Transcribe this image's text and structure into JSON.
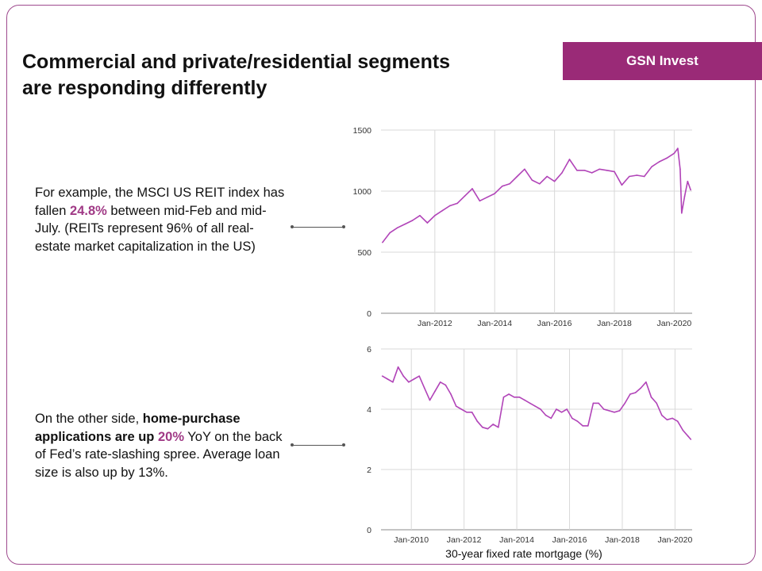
{
  "brand": {
    "label": "GSN Invest",
    "color": "#9a2a77"
  },
  "title": {
    "line1": "Commercial and private/residential segments",
    "line2": "are responding differently"
  },
  "notes": [
    {
      "before": "For example, the MSCI US REIT index has fallen ",
      "highlight": "24.8%",
      "after": " between mid-Feb and mid-July. (REITs represent 96% of all real-estate market capitalization in the US)"
    },
    {
      "before": "On the other side, ",
      "bold": "home-purchase applications are up ",
      "highlight": "20%",
      "after": " YoY on the back of Fed’s rate-slashing spree. Average loan size is also up by 13%."
    }
  ],
  "colors": {
    "series": "#b144b8",
    "accent_text": "#a03a86",
    "frame": "#9e4a8e",
    "grid": "#d9d9d9"
  },
  "chart_data": [
    {
      "type": "line",
      "title": "",
      "series": [
        {
          "x": [
            2010.25,
            2010.5,
            2010.75,
            2011.0,
            2011.25,
            2011.5,
            2011.75,
            2012.0,
            2012.25,
            2012.5,
            2012.75,
            2013.0,
            2013.25,
            2013.5,
            2013.75,
            2014.0,
            2014.25,
            2014.5,
            2014.75,
            2015.0,
            2015.25,
            2015.5,
            2015.75,
            2016.0,
            2016.25,
            2016.5,
            2016.75,
            2017.0,
            2017.25,
            2017.5,
            2017.75,
            2018.0,
            2018.25,
            2018.5,
            2018.75,
            2019.0,
            2019.25,
            2019.5,
            2019.75,
            2020.0,
            2020.12,
            2020.2,
            2020.25,
            2020.35,
            2020.45,
            2020.55
          ],
          "y": [
            580,
            660,
            700,
            730,
            760,
            800,
            740,
            800,
            840,
            880,
            900,
            960,
            1020,
            920,
            950,
            980,
            1040,
            1060,
            1120,
            1180,
            1090,
            1060,
            1120,
            1080,
            1150,
            1260,
            1170,
            1170,
            1150,
            1180,
            1170,
            1160,
            1050,
            1120,
            1130,
            1120,
            1200,
            1240,
            1270,
            1310,
            1350,
            1180,
            820,
            960,
            1080,
            1010
          ]
        }
      ],
      "x_ticks": [
        "Jan-2012",
        "Jan-2014",
        "Jan-2016",
        "Jan-2018",
        "Jan-2020"
      ],
      "x_tick_values": [
        2012,
        2014,
        2016,
        2018,
        2020
      ],
      "xlim": [
        2010.2,
        2020.6
      ],
      "y_ticks": [
        "0",
        "500",
        "1000",
        "1500"
      ],
      "y_tick_values": [
        0,
        500,
        1000,
        1500
      ],
      "ylim": [
        0,
        1500
      ],
      "grid": true
    },
    {
      "type": "line",
      "title": "30-year fixed rate mortgage (%)",
      "series": [
        {
          "x": [
            2008.9,
            2009.1,
            2009.3,
            2009.5,
            2009.7,
            2009.9,
            2010.1,
            2010.3,
            2010.5,
            2010.7,
            2010.9,
            2011.1,
            2011.3,
            2011.5,
            2011.7,
            2011.9,
            2012.1,
            2012.3,
            2012.5,
            2012.7,
            2012.9,
            2013.1,
            2013.3,
            2013.5,
            2013.7,
            2013.9,
            2014.1,
            2014.3,
            2014.5,
            2014.7,
            2014.9,
            2015.1,
            2015.3,
            2015.5,
            2015.7,
            2015.9,
            2016.1,
            2016.3,
            2016.5,
            2016.7,
            2016.9,
            2017.1,
            2017.3,
            2017.5,
            2017.7,
            2017.9,
            2018.1,
            2018.3,
            2018.5,
            2018.7,
            2018.9,
            2019.1,
            2019.3,
            2019.5,
            2019.7,
            2019.9,
            2020.1,
            2020.3,
            2020.5,
            2020.6
          ],
          "y": [
            5.1,
            5.0,
            4.9,
            5.4,
            5.1,
            4.9,
            5.0,
            5.1,
            4.7,
            4.3,
            4.6,
            4.9,
            4.8,
            4.5,
            4.1,
            4.0,
            3.9,
            3.9,
            3.6,
            3.4,
            3.35,
            3.5,
            3.4,
            4.4,
            4.5,
            4.4,
            4.4,
            4.3,
            4.2,
            4.1,
            4.0,
            3.8,
            3.7,
            4.0,
            3.9,
            4.0,
            3.7,
            3.6,
            3.45,
            3.45,
            4.2,
            4.2,
            4.0,
            3.95,
            3.9,
            3.95,
            4.2,
            4.5,
            4.55,
            4.7,
            4.9,
            4.4,
            4.2,
            3.8,
            3.65,
            3.7,
            3.6,
            3.3,
            3.1,
            3.0
          ]
        }
      ],
      "x_ticks": [
        "Jan-2010",
        "Jan-2012",
        "Jan-2014",
        "Jan-2016",
        "Jan-2018",
        "Jan-2020"
      ],
      "x_tick_values": [
        2010,
        2012,
        2014,
        2016,
        2018,
        2020
      ],
      "xlim": [
        2008.85,
        2020.65
      ],
      "y_ticks": [
        "0",
        "2",
        "4",
        "6"
      ],
      "y_tick_values": [
        0,
        2,
        4,
        6
      ],
      "ylim": [
        0,
        6
      ],
      "grid": true
    }
  ]
}
